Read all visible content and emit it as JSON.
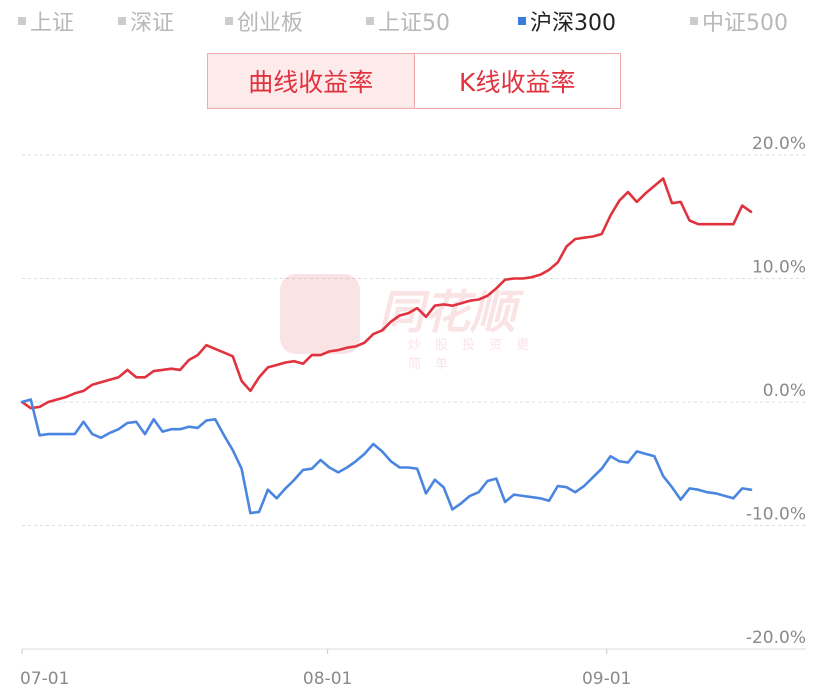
{
  "legend": [
    {
      "label": "上证",
      "active": false
    },
    {
      "label": "深证",
      "active": false
    },
    {
      "label": "创业板",
      "active": false
    },
    {
      "label": "上证50",
      "active": false
    },
    {
      "label": "沪深300",
      "active": true
    },
    {
      "label": "中证500",
      "active": false
    }
  ],
  "toggle": {
    "curve_label": "曲线收益率",
    "kline_label": "K线收益率"
  },
  "watermark": {
    "brand": "同花顺",
    "tagline": "炒股投资更简单"
  },
  "colors": {
    "strategy": "#e0333f",
    "index": "#4a86e0",
    "active_swatch": "#3a7be0"
  },
  "chart_data": {
    "type": "line",
    "title": "",
    "xlabel": "",
    "ylabel": "",
    "ylim": [
      -20,
      20
    ],
    "yticks": [
      20,
      10,
      0,
      -10,
      -20
    ],
    "ytick_labels": [
      "20.0%",
      "10.0%",
      "0.0%",
      "-10.0%",
      "-20.0%"
    ],
    "grid": true,
    "xtick_labels": [
      "07-01",
      "08-01",
      "09-01"
    ],
    "xtick_positions": [
      0,
      23,
      44
    ],
    "x_range": [
      0,
      59
    ],
    "series": [
      {
        "values": [
          0,
          -0.5,
          -0.4,
          0,
          0.2,
          0.4,
          0.7,
          0.9,
          1.4,
          1.6,
          1.8,
          2.0,
          2.6,
          2.0,
          2.0,
          2.5,
          2.6,
          2.7,
          2.6,
          3.4,
          3.8,
          4.6,
          4.3,
          4.0,
          3.7,
          1.7,
          0.9,
          2.0,
          2.8,
          3.0,
          3.2,
          3.3,
          3.1,
          3.8,
          3.8,
          4.1,
          4.2,
          4.4,
          4.5,
          4.8,
          5.5,
          5.8,
          6.5,
          7.0,
          7.2,
          7.6,
          6.9,
          7.8,
          7.9,
          7.8,
          8.0,
          8.2,
          8.3,
          8.6,
          9.2,
          9.9,
          10.0,
          10.0,
          10.1,
          10.3,
          10.7,
          11.3,
          12.6,
          13.2,
          13.3,
          13.4,
          13.6,
          15.1,
          16.3,
          17.0,
          16.2,
          16.9,
          17.5,
          18.1,
          16.1,
          16.2,
          14.7,
          14.4,
          14.4,
          14.4,
          14.4,
          14.4,
          15.9,
          15.4
        ]
      },
      {
        "values": [
          0,
          0.2,
          -2.7,
          -2.6,
          -2.6,
          -2.6,
          -2.6,
          -1.6,
          -2.6,
          -2.9,
          -2.5,
          -2.2,
          -1.7,
          -1.6,
          -2.6,
          -1.4,
          -2.4,
          -2.2,
          -2.2,
          -2.0,
          -2.1,
          -1.5,
          -1.4,
          -2.7,
          -3.9,
          -5.4,
          -9.0,
          -8.9,
          -7.1,
          -7.8,
          -7.0,
          -6.3,
          -5.5,
          -5.4,
          -4.7,
          -5.3,
          -5.7,
          -5.3,
          -4.8,
          -4.2,
          -3.4,
          -4.0,
          -4.8,
          -5.3,
          -5.3,
          -5.4,
          -7.4,
          -6.3,
          -6.9,
          -8.7,
          -8.2,
          -7.6,
          -7.3,
          -6.4,
          -6.2,
          -8.1,
          -7.5,
          -7.6,
          -7.7,
          -7.8,
          -8.0,
          -6.8,
          -6.9,
          -7.3,
          -6.8,
          -6.1,
          -5.4,
          -4.4,
          -4.8,
          -4.9,
          -4.0,
          -4.2,
          -4.4,
          -6.0,
          -6.9,
          -7.9,
          -7.0,
          -7.1,
          -7.3,
          -7.4,
          -7.6,
          -7.8,
          -7.0,
          -7.1
        ]
      }
    ]
  }
}
